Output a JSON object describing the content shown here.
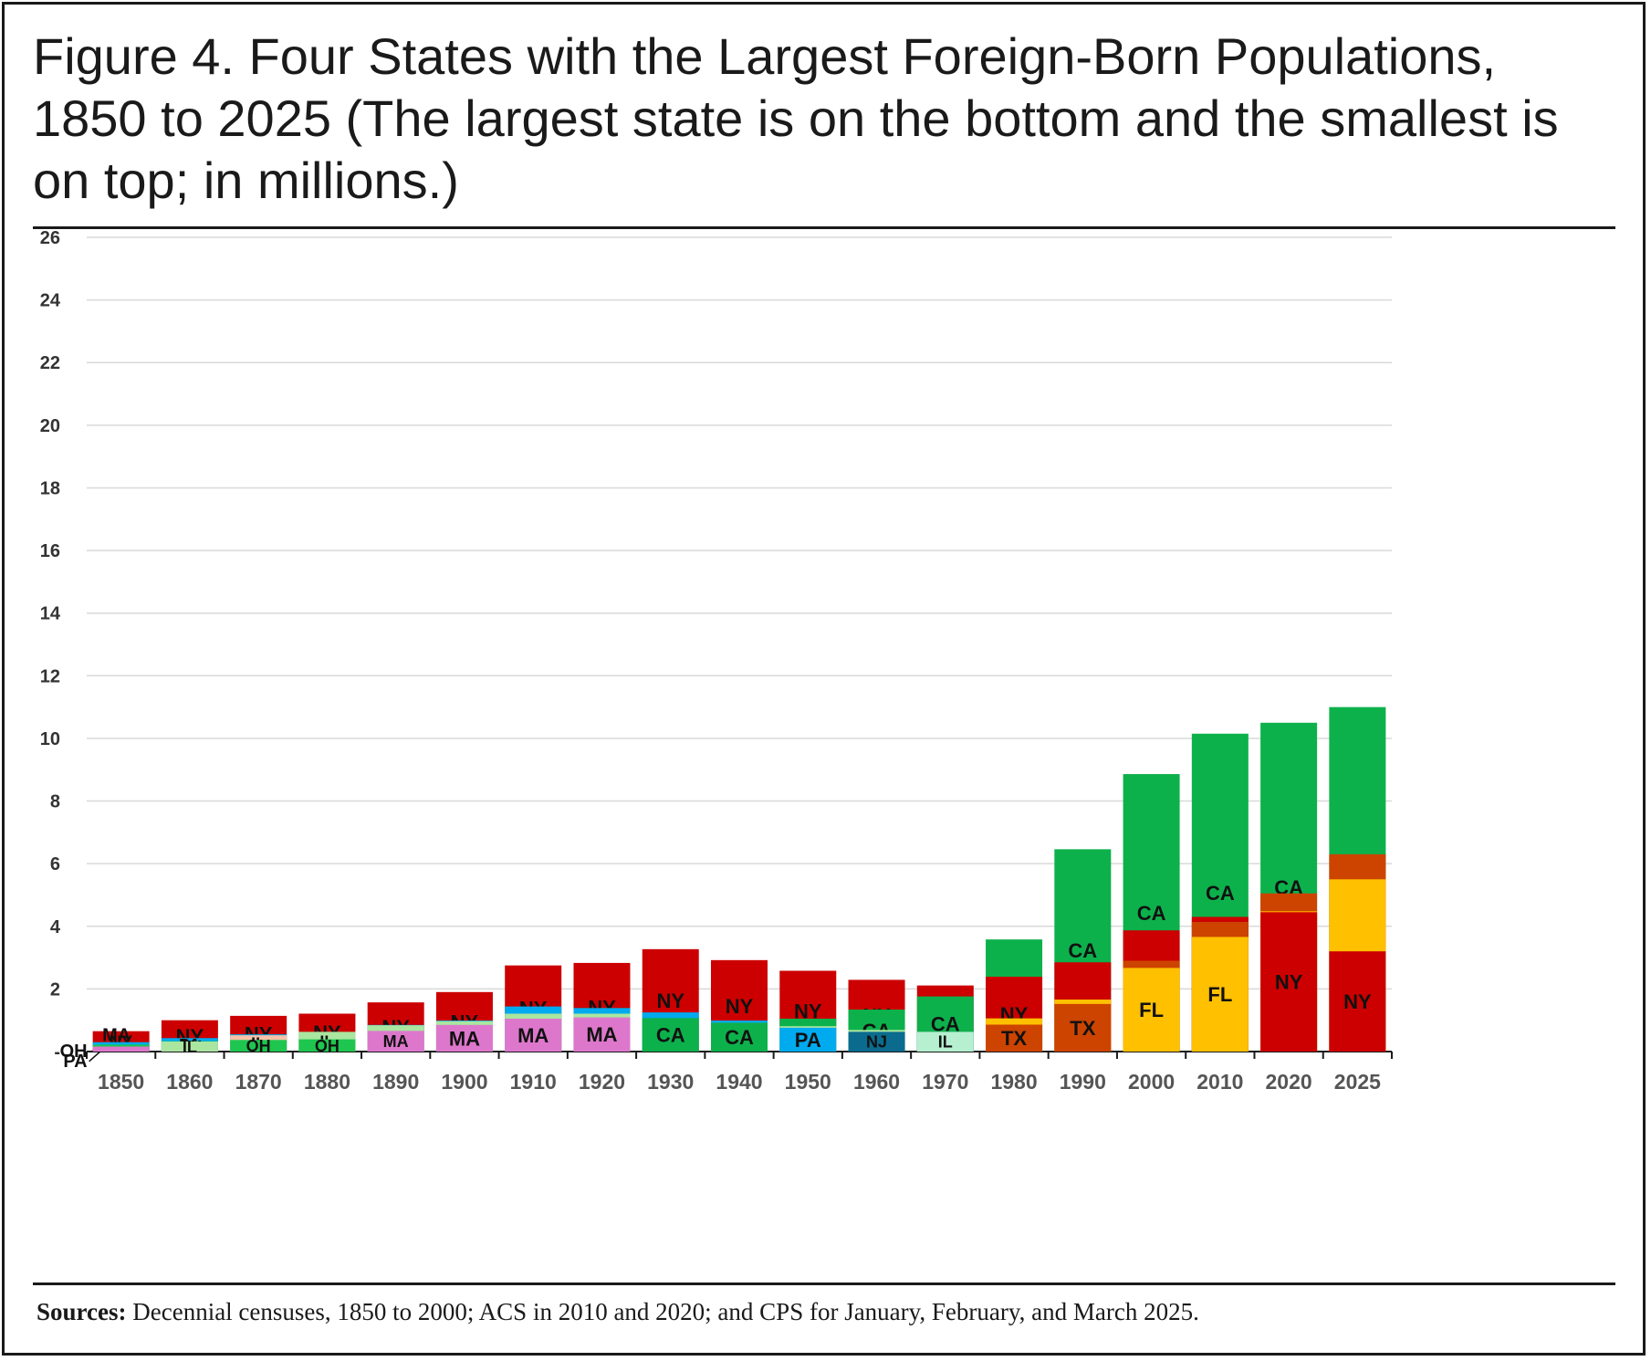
{
  "title": "Figure 4. Four States with the Largest Foreign-Born Populations, 1850 to 2025 (The largest state is on the bottom and the smallest is on top; in millions.)",
  "source": {
    "label": "Sources:",
    "text": "Decennial censuses, 1850 to 2000; ACS in 2010 and 2020; and CPS for January, February, and March 2025."
  },
  "colors": {
    "NY": "#cc0000",
    "PA": "#00aaee",
    "OH": "#1ec64f",
    "MA": "#dd77cc",
    "IL": "#aae6a0",
    "IL1870": "#f6c3a8",
    "IL1970": "#b6f0d0",
    "CA": "#0db14b",
    "NJ": "#0b6b8f",
    "FL": "#ffc000",
    "TX": "#cc4400",
    "grid": "#d9d9d9",
    "text": "#1a1a1a"
  },
  "chart_data": {
    "type": "bar",
    "stacked": true,
    "units": "millions",
    "ylim": [
      0,
      26
    ],
    "yticks": [
      0,
      2,
      4,
      6,
      8,
      10,
      12,
      14,
      16,
      18,
      20,
      22,
      24,
      26
    ],
    "ytick_labels": [
      "-",
      "2",
      "4",
      "6",
      "8",
      "10",
      "12",
      "14",
      "16",
      "18",
      "20",
      "22",
      "24",
      "26"
    ],
    "categories": [
      "1850",
      "1860",
      "1870",
      "1880",
      "1890",
      "1900",
      "1910",
      "1920",
      "1930",
      "1940",
      "1950",
      "1960",
      "1970",
      "1980",
      "1990",
      "2000",
      "2010",
      "2020",
      "2025"
    ],
    "stacks": [
      {
        "year": "1850",
        "segments": [
          {
            "state": "NY",
            "value": 0.65
          },
          {
            "state": "PA",
            "value": 0.3
          },
          {
            "state": "OH",
            "value": 0.22
          },
          {
            "state": "MA",
            "value": 0.16
          }
        ]
      },
      {
        "year": "1860",
        "segments": [
          {
            "state": "NY",
            "value": 1.0
          },
          {
            "state": "PA",
            "value": 0.43
          },
          {
            "state": "OH",
            "value": 0.33
          },
          {
            "state": "IL",
            "value": 0.32
          }
        ]
      },
      {
        "year": "1870",
        "segments": [
          {
            "state": "NY",
            "value": 1.14
          },
          {
            "state": "PA",
            "value": 0.55
          },
          {
            "state": "IL",
            "value": 0.52,
            "color_key": "IL1870"
          },
          {
            "state": "OH",
            "value": 0.37
          }
        ]
      },
      {
        "year": "1880",
        "segments": [
          {
            "state": "NY",
            "value": 1.21
          },
          {
            "state": "PA",
            "value": 0.59
          },
          {
            "state": "IL",
            "value": 0.63
          },
          {
            "state": "OH",
            "value": 0.39
          }
        ]
      },
      {
        "year": "1890",
        "segments": [
          {
            "state": "NY",
            "value": 1.57
          },
          {
            "state": "PA",
            "value": 0.85
          },
          {
            "state": "IL",
            "value": 0.84
          },
          {
            "state": "MA",
            "value": 0.66
          }
        ]
      },
      {
        "year": "1900",
        "segments": [
          {
            "state": "NY",
            "value": 1.9
          },
          {
            "state": "PA",
            "value": 0.99
          },
          {
            "state": "IL",
            "value": 0.97
          },
          {
            "state": "MA",
            "value": 0.85
          }
        ]
      },
      {
        "year": "1910",
        "segments": [
          {
            "state": "NY",
            "value": 2.75
          },
          {
            "state": "PA",
            "value": 1.44
          },
          {
            "state": "IL",
            "value": 1.21
          },
          {
            "state": "MA",
            "value": 1.05
          }
        ]
      },
      {
        "year": "1920",
        "segments": [
          {
            "state": "NY",
            "value": 2.83
          },
          {
            "state": "PA",
            "value": 1.39
          },
          {
            "state": "IL",
            "value": 1.21
          },
          {
            "state": "MA",
            "value": 1.09
          }
        ]
      },
      {
        "year": "1930",
        "segments": [
          {
            "state": "NY",
            "value": 3.27
          },
          {
            "state": "IL",
            "value": 1.23
          },
          {
            "state": "PA",
            "value": 1.25
          },
          {
            "state": "CA",
            "value": 1.07
          }
        ]
      },
      {
        "year": "1940",
        "segments": [
          {
            "state": "NY",
            "value": 2.92
          },
          {
            "state": "PA",
            "value": 0.99
          },
          {
            "state": "IL",
            "value": 0.92
          },
          {
            "state": "CA",
            "value": 0.92
          }
        ]
      },
      {
        "year": "1950",
        "segments": [
          {
            "state": "NY",
            "value": 2.58
          },
          {
            "state": "CA",
            "value": 1.05
          },
          {
            "state": "IL",
            "value": 0.81
          },
          {
            "state": "PA",
            "value": 0.76
          }
        ]
      },
      {
        "year": "1960",
        "segments": [
          {
            "state": "NY",
            "value": 2.29
          },
          {
            "state": "CA",
            "value": 1.34
          },
          {
            "state": "IL",
            "value": 0.69
          },
          {
            "state": "NJ",
            "value": 0.63
          }
        ]
      },
      {
        "year": "1970",
        "segments": [
          {
            "state": "NY",
            "value": 2.11
          },
          {
            "state": "CA",
            "value": 1.76
          },
          {
            "state": "NJ",
            "value": 0.63
          },
          {
            "state": "IL",
            "value": 0.63,
            "color_key": "IL1970"
          }
        ]
      },
      {
        "year": "1980",
        "segments": [
          {
            "state": "CA",
            "value": 3.58
          },
          {
            "state": "NY",
            "value": 2.39
          },
          {
            "state": "FL",
            "value": 1.06
          },
          {
            "state": "TX",
            "value": 0.86
          }
        ]
      },
      {
        "year": "1990",
        "segments": [
          {
            "state": "CA",
            "value": 6.46
          },
          {
            "state": "NY",
            "value": 2.85
          },
          {
            "state": "FL",
            "value": 1.66
          },
          {
            "state": "TX",
            "value": 1.52
          }
        ]
      },
      {
        "year": "2000",
        "segments": [
          {
            "state": "CA",
            "value": 8.86
          },
          {
            "state": "NY",
            "value": 3.87
          },
          {
            "state": "TX",
            "value": 2.9
          },
          {
            "state": "FL",
            "value": 2.67
          }
        ]
      },
      {
        "year": "2010",
        "segments": [
          {
            "state": "CA",
            "value": 10.15
          },
          {
            "state": "NY",
            "value": 4.3
          },
          {
            "state": "TX",
            "value": 4.14
          },
          {
            "state": "FL",
            "value": 3.66
          }
        ]
      },
      {
        "year": "2020",
        "segments": [
          {
            "state": "CA",
            "value": 10.5
          },
          {
            "state": "TX",
            "value": 5.05
          },
          {
            "state": "FL",
            "value": 4.48
          },
          {
            "state": "NY",
            "value": 4.45
          }
        ]
      },
      {
        "year": "2025",
        "segments": [
          {
            "state": "CA",
            "value": 11.0
          },
          {
            "state": "TX",
            "value": 6.3
          },
          {
            "state": "FL",
            "value": 5.5
          },
          {
            "state": "NY",
            "value": 3.2
          }
        ]
      }
    ],
    "title": "Figure 4. Four States with the Largest Foreign-Born Populations, 1850 to 2025 (The largest state is on the bottom and the smallest is on top; in millions.)",
    "xlabel": "",
    "ylabel": ""
  }
}
